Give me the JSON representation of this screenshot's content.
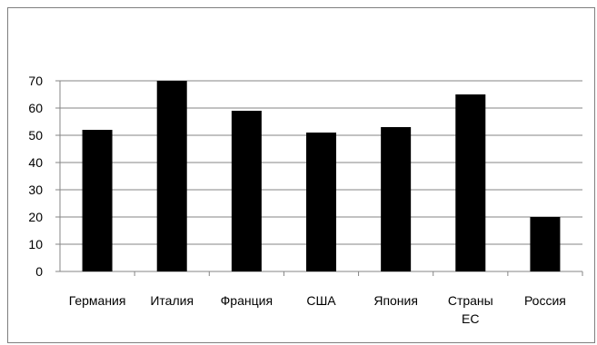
{
  "chart_data": {
    "type": "bar",
    "categories": [
      [
        "Германия"
      ],
      [
        "Италия"
      ],
      [
        "Франция"
      ],
      [
        "США"
      ],
      [
        "Япония"
      ],
      [
        "Страны",
        "ЕС"
      ],
      [
        "Россия"
      ]
    ],
    "values": [
      52,
      70,
      59,
      51,
      53,
      65,
      20
    ],
    "yticks": [
      "0",
      "10",
      "20",
      "30",
      "40",
      "50",
      "60",
      "70"
    ],
    "ylim": [
      0,
      70
    ],
    "grid": true,
    "legend": "none",
    "bar_color": "#000000",
    "grid_color": "#868686",
    "title": "",
    "xlabel": "",
    "ylabel": ""
  }
}
